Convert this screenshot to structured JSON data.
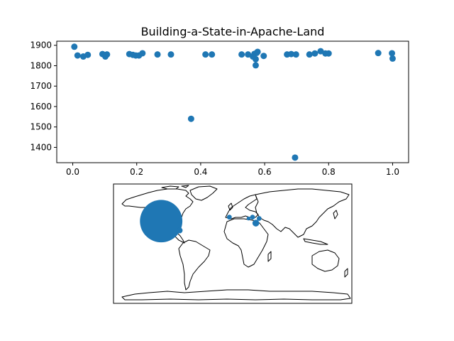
{
  "colors": {
    "marker": "#1f77b4",
    "axis": "#000000",
    "land_outline": "#000000"
  },
  "chart_data": [
    {
      "type": "scatter",
      "title": "Building-a-State-in-Apache-Land",
      "xlabel": "",
      "ylabel": "",
      "xlim": [
        -0.05,
        1.05
      ],
      "ylim": [
        1325,
        1920
      ],
      "grid": false,
      "xticks": [
        0.0,
        0.2,
        0.4,
        0.6,
        0.8,
        1.0
      ],
      "xtick_labels": [
        "0.0",
        "0.2",
        "0.4",
        "0.6",
        "0.8",
        "1.0"
      ],
      "yticks": [
        1400,
        1500,
        1600,
        1700,
        1800,
        1900
      ],
      "ytick_labels": [
        "1400",
        "1500",
        "1600",
        "1700",
        "1800",
        "1900"
      ],
      "points": [
        [
          0.005,
          1893
        ],
        [
          0.015,
          1850
        ],
        [
          0.033,
          1845
        ],
        [
          0.047,
          1853
        ],
        [
          0.093,
          1857
        ],
        [
          0.102,
          1845
        ],
        [
          0.107,
          1855
        ],
        [
          0.177,
          1857
        ],
        [
          0.188,
          1853
        ],
        [
          0.197,
          1850
        ],
        [
          0.207,
          1850
        ],
        [
          0.218,
          1861
        ],
        [
          0.265,
          1855
        ],
        [
          0.307,
          1855
        ],
        [
          0.37,
          1540
        ],
        [
          0.415,
          1855
        ],
        [
          0.435,
          1855
        ],
        [
          0.528,
          1855
        ],
        [
          0.548,
          1855
        ],
        [
          0.563,
          1845
        ],
        [
          0.568,
          1858
        ],
        [
          0.572,
          1832
        ],
        [
          0.575,
          1863
        ],
        [
          0.578,
          1868
        ],
        [
          0.572,
          1802
        ],
        [
          0.597,
          1848
        ],
        [
          0.67,
          1855
        ],
        [
          0.683,
          1857
        ],
        [
          0.698,
          1855
        ],
        [
          0.695,
          1350
        ],
        [
          0.74,
          1855
        ],
        [
          0.757,
          1860
        ],
        [
          0.775,
          1871
        ],
        [
          0.79,
          1860
        ],
        [
          0.8,
          1860
        ],
        [
          0.955,
          1862
        ],
        [
          0.998,
          1861
        ],
        [
          1.0,
          1835
        ]
      ]
    },
    {
      "type": "bubble-map",
      "title": "",
      "projection": "equirectangular",
      "lon_range": [
        -180,
        180
      ],
      "lat_range": [
        -90,
        90
      ],
      "bubbles": [
        {
          "lon": -108,
          "lat": 34,
          "size": 44
        },
        {
          "lon": -80,
          "lat": 20,
          "size": 6
        },
        {
          "lon": -5,
          "lat": 40,
          "size": 5
        },
        {
          "lon": 30,
          "lat": 40,
          "size": 5
        },
        {
          "lon": 35,
          "lat": 31,
          "size": 7
        },
        {
          "lon": 40,
          "lat": 38,
          "size": 5
        },
        {
          "lon": 24,
          "lat": 38,
          "size": 4
        }
      ]
    }
  ]
}
